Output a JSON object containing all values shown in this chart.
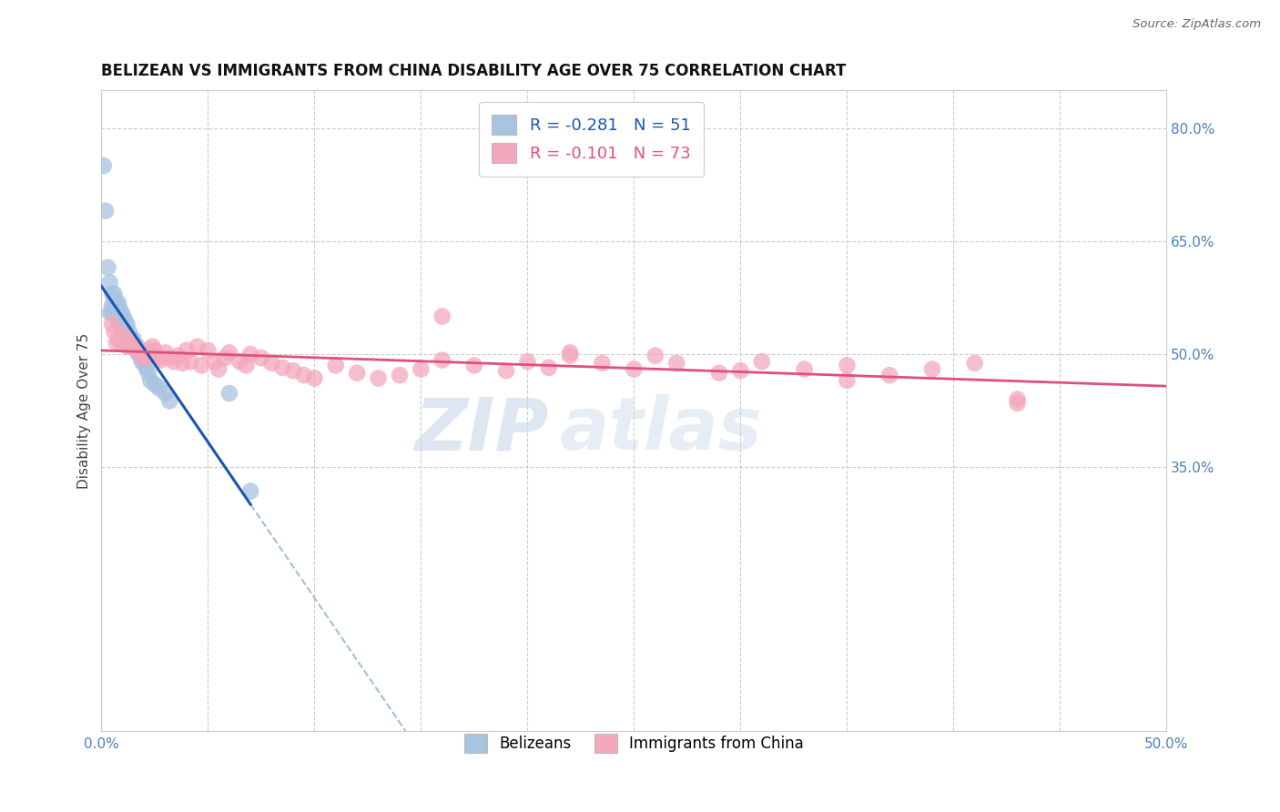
{
  "title": "BELIZEAN VS IMMIGRANTS FROM CHINA DISABILITY AGE OVER 75 CORRELATION CHART",
  "source": "Source: ZipAtlas.com",
  "ylabel": "Disability Age Over 75",
  "xlim": [
    0.0,
    0.5
  ],
  "ylim": [
    0.0,
    0.85
  ],
  "xticks": [
    0.0,
    0.05,
    0.1,
    0.15,
    0.2,
    0.25,
    0.3,
    0.35,
    0.4,
    0.45,
    0.5
  ],
  "yticks_right": [
    0.35,
    0.5,
    0.65,
    0.8
  ],
  "ytick_right_labels": [
    "35.0%",
    "50.0%",
    "65.0%",
    "80.0%"
  ],
  "belizean_color": "#a8c4e0",
  "china_color": "#f4a8bc",
  "belizean_line_color": "#1a56b0",
  "china_line_color": "#e0507a",
  "dashed_line_color": "#a0c0d8",
  "watermark_zip": "ZIP",
  "watermark_atlas": "atlas",
  "legend_r_belizean": "-0.281",
  "legend_n_belizean": "51",
  "legend_r_china": "-0.101",
  "legend_n_china": "73",
  "legend_label_belizean": "Belizeans",
  "legend_label_china": "Immigrants from China",
  "belizean_points_x": [
    0.001,
    0.002,
    0.003,
    0.004,
    0.004,
    0.005,
    0.005,
    0.005,
    0.006,
    0.006,
    0.006,
    0.007,
    0.007,
    0.007,
    0.008,
    0.008,
    0.008,
    0.009,
    0.009,
    0.009,
    0.01,
    0.01,
    0.01,
    0.01,
    0.011,
    0.011,
    0.011,
    0.012,
    0.012,
    0.013,
    0.013,
    0.013,
    0.014,
    0.014,
    0.015,
    0.015,
    0.016,
    0.017,
    0.017,
    0.018,
    0.019,
    0.02,
    0.021,
    0.022,
    0.023,
    0.025,
    0.027,
    0.03,
    0.032,
    0.06,
    0.07
  ],
  "belizean_points_y": [
    0.75,
    0.69,
    0.615,
    0.595,
    0.555,
    0.58,
    0.565,
    0.555,
    0.58,
    0.57,
    0.56,
    0.568,
    0.56,
    0.55,
    0.568,
    0.558,
    0.548,
    0.558,
    0.548,
    0.538,
    0.552,
    0.545,
    0.538,
    0.53,
    0.545,
    0.535,
    0.528,
    0.54,
    0.53,
    0.53,
    0.522,
    0.515,
    0.52,
    0.51,
    0.52,
    0.512,
    0.51,
    0.51,
    0.502,
    0.498,
    0.49,
    0.488,
    0.482,
    0.475,
    0.465,
    0.46,
    0.455,
    0.448,
    0.438,
    0.448,
    0.318
  ],
  "china_points_x": [
    0.005,
    0.006,
    0.007,
    0.008,
    0.009,
    0.01,
    0.011,
    0.012,
    0.013,
    0.014,
    0.015,
    0.016,
    0.017,
    0.018,
    0.019,
    0.02,
    0.022,
    0.023,
    0.024,
    0.025,
    0.027,
    0.028,
    0.03,
    0.032,
    0.034,
    0.036,
    0.038,
    0.04,
    0.042,
    0.045,
    0.047,
    0.05,
    0.053,
    0.055,
    0.058,
    0.06,
    0.065,
    0.068,
    0.07,
    0.075,
    0.08,
    0.085,
    0.09,
    0.095,
    0.1,
    0.11,
    0.12,
    0.13,
    0.14,
    0.15,
    0.16,
    0.175,
    0.19,
    0.2,
    0.21,
    0.22,
    0.235,
    0.25,
    0.27,
    0.29,
    0.31,
    0.33,
    0.35,
    0.37,
    0.39,
    0.41,
    0.43,
    0.35,
    0.3,
    0.26,
    0.22,
    0.16,
    0.43
  ],
  "china_points_y": [
    0.54,
    0.53,
    0.515,
    0.52,
    0.515,
    0.525,
    0.518,
    0.51,
    0.515,
    0.51,
    0.512,
    0.508,
    0.505,
    0.502,
    0.498,
    0.495,
    0.505,
    0.498,
    0.51,
    0.505,
    0.495,
    0.492,
    0.502,
    0.495,
    0.49,
    0.498,
    0.488,
    0.505,
    0.49,
    0.51,
    0.485,
    0.505,
    0.49,
    0.48,
    0.495,
    0.502,
    0.49,
    0.485,
    0.5,
    0.495,
    0.488,
    0.482,
    0.478,
    0.472,
    0.468,
    0.485,
    0.475,
    0.468,
    0.472,
    0.48,
    0.492,
    0.485,
    0.478,
    0.49,
    0.482,
    0.498,
    0.488,
    0.48,
    0.488,
    0.475,
    0.49,
    0.48,
    0.465,
    0.472,
    0.48,
    0.488,
    0.44,
    0.485,
    0.478,
    0.498,
    0.502,
    0.55,
    0.435
  ]
}
